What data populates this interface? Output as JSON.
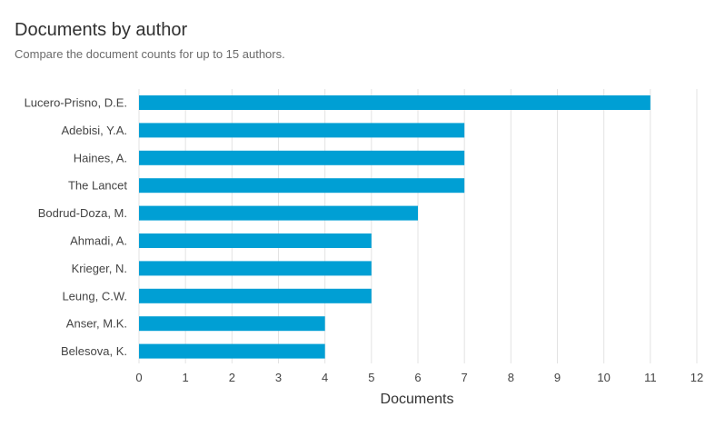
{
  "header": {
    "title": "Documents by author",
    "subtitle": "Compare the document counts for up to 15 authors."
  },
  "colors": {
    "bar": "#009fd4",
    "grid": "#e3e3e3",
    "tick_text": "#444444"
  },
  "chart_data": {
    "type": "bar",
    "orientation": "horizontal",
    "categories": [
      "Lucero-Prisno, D.E.",
      "Adebisi, Y.A.",
      "Haines, A.",
      "The Lancet",
      "Bodrud-Doza, M.",
      "Ahmadi, A.",
      "Krieger, N.",
      "Leung, C.W.",
      "Anser, M.K.",
      "Belesova, K."
    ],
    "values": [
      11,
      7,
      7,
      7,
      6,
      5,
      5,
      5,
      4,
      4
    ],
    "title": "Documents by author",
    "subtitle": "Compare the document counts for up to 15 authors.",
    "xlabel": "Documents",
    "ylabel": "",
    "xlim": [
      0,
      12
    ],
    "xticks": [
      0,
      1,
      2,
      3,
      4,
      5,
      6,
      7,
      8,
      9,
      10,
      11,
      12
    ],
    "grid": true,
    "legend": "none"
  }
}
